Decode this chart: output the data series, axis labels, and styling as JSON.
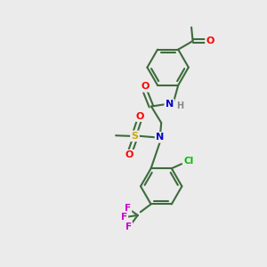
{
  "bg_color": "#ebebeb",
  "atom_colors": {
    "C": "#3d6b3d",
    "N": "#0000cd",
    "O": "#ff0000",
    "S": "#ccaa00",
    "Cl": "#00bb00",
    "F": "#cc00cc",
    "H": "#888888"
  },
  "bond_color": "#3d6b3d",
  "figsize": [
    3.0,
    3.0
  ],
  "dpi": 100
}
